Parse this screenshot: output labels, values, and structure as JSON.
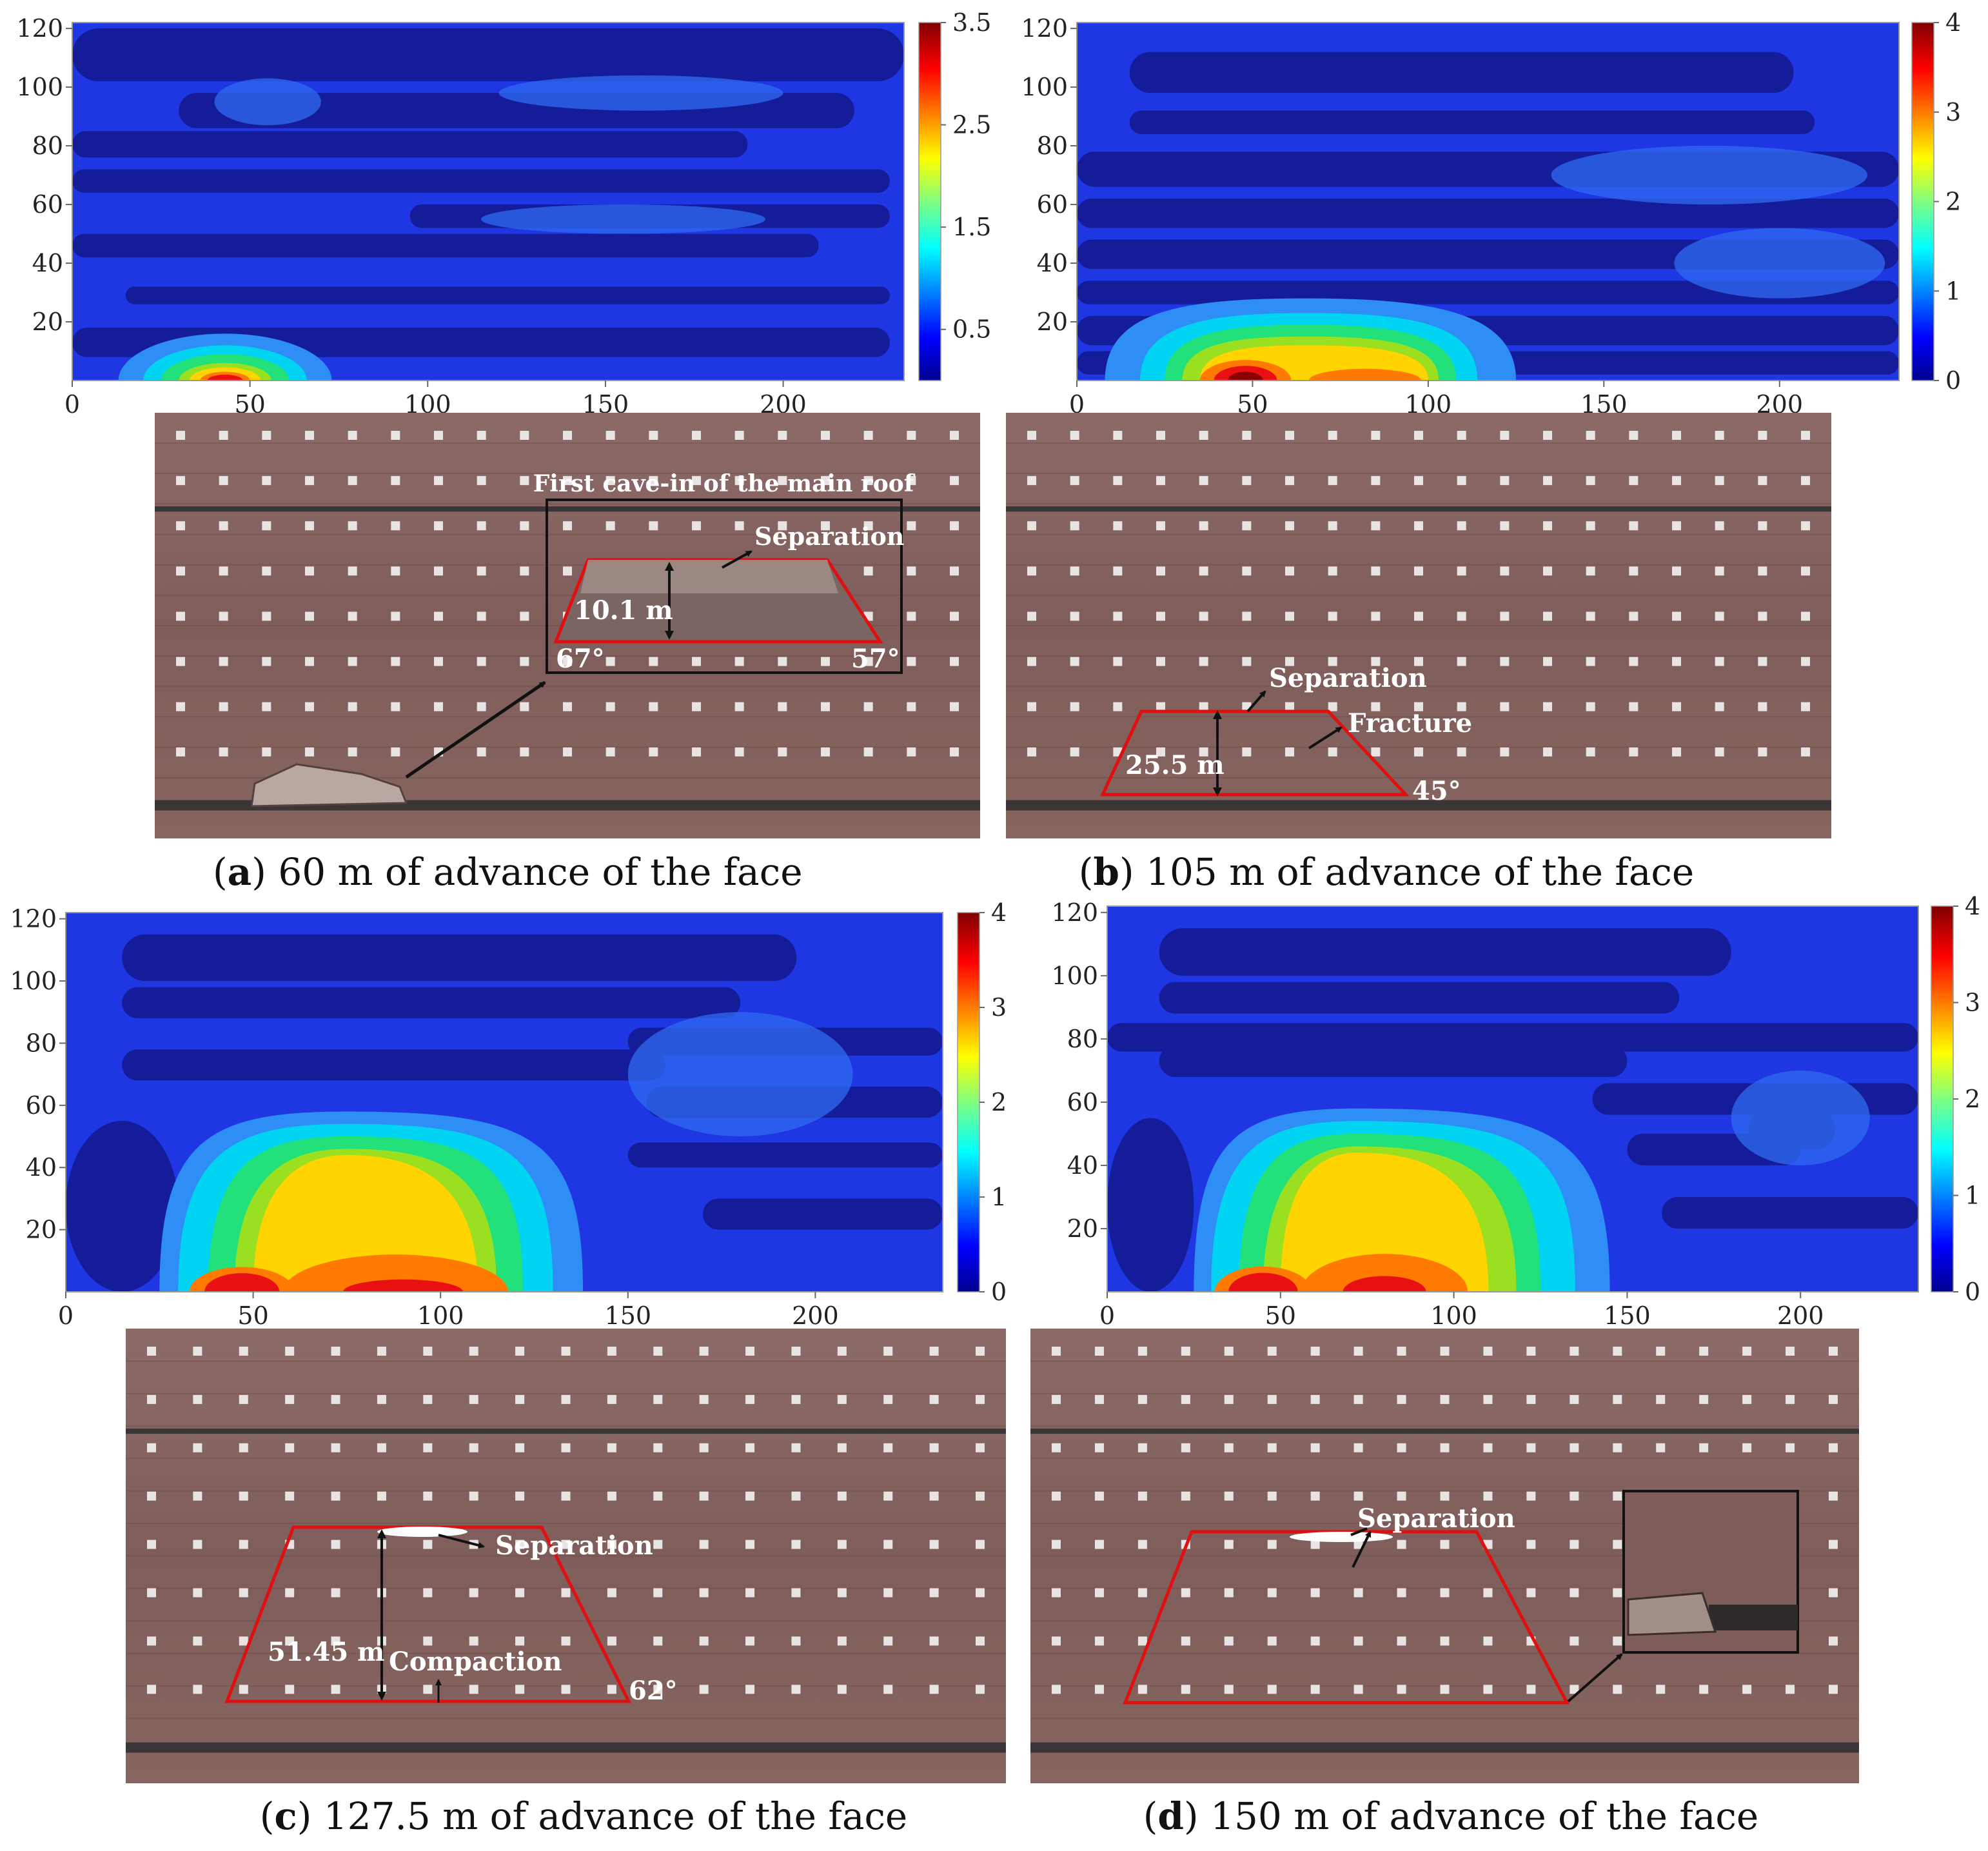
{
  "figures": [
    {
      "caption": {
        "letter": "a",
        "text": "60 m of advance of the face"
      }
    },
    {
      "caption": {
        "letter": "b",
        "text": "105 m of advance of the face"
      }
    },
    {
      "caption": {
        "letter": "c",
        "text": "127.5 m of advance of the face"
      }
    },
    {
      "caption": {
        "letter": "d",
        "text": "150 m of advance of the face"
      }
    }
  ],
  "chart_data": [
    {
      "type": "heatmap",
      "xlim": [
        0,
        234
      ],
      "ylim": [
        0,
        122
      ],
      "x_ticks": [
        "0",
        "50",
        "100",
        "150",
        "200"
      ],
      "y_ticks": [
        "120",
        "100",
        "80",
        "60",
        "40",
        "20"
      ],
      "colorbar": {
        "range": [
          0,
          3.5
        ],
        "ticks": [
          "3.5",
          "2.5",
          "1.5",
          "0.5"
        ]
      },
      "peaks": [
        {
          "x": 45,
          "y": 0,
          "value": 3.5
        }
      ],
      "photo_annotations": [
        "First cave-in of the main roof",
        "Separation",
        "10.1 m",
        "67°",
        "57°"
      ]
    },
    {
      "type": "heatmap",
      "xlim": [
        0,
        234
      ],
      "ylim": [
        0,
        122
      ],
      "x_ticks": [
        "0",
        "50",
        "100",
        "150",
        "200"
      ],
      "y_ticks": [
        "120",
        "100",
        "80",
        "60",
        "40",
        "20"
      ],
      "colorbar": {
        "range": [
          0,
          4
        ],
        "ticks": [
          "4",
          "3",
          "2",
          "1",
          "0"
        ]
      },
      "peaks": [
        {
          "x": 50,
          "y": 0,
          "value": 4
        },
        {
          "x": 80,
          "y": 0,
          "value": 3
        }
      ],
      "photo_annotations": [
        "Separation",
        "Fracture",
        "25.5 m",
        "45°"
      ]
    },
    {
      "type": "heatmap",
      "xlim": [
        0,
        234
      ],
      "ylim": [
        0,
        122
      ],
      "x_ticks": [
        "0",
        "50",
        "100",
        "150",
        "200"
      ],
      "y_ticks": [
        "120",
        "100",
        "80",
        "60",
        "40",
        "20"
      ],
      "colorbar": {
        "range": [
          0,
          4
        ],
        "ticks": [
          "4",
          "3",
          "2",
          "1",
          "0"
        ]
      },
      "peaks": [
        {
          "x": 48,
          "y": 0,
          "value": 4
        },
        {
          "x": 85,
          "y": 0,
          "value": 3.5
        }
      ],
      "photo_annotations": [
        "Separation",
        "51.45 m",
        "Compaction",
        "62°"
      ]
    },
    {
      "type": "heatmap",
      "xlim": [
        0,
        234
      ],
      "ylim": [
        0,
        122
      ],
      "x_ticks": [
        "0",
        "50",
        "100",
        "150",
        "200"
      ],
      "y_ticks": [
        "120",
        "100",
        "80",
        "60",
        "40",
        "20"
      ],
      "colorbar": {
        "range": [
          0,
          4
        ],
        "ticks": [
          "4",
          "3",
          "2",
          "1",
          "0"
        ]
      },
      "peaks": [
        {
          "x": 45,
          "y": 0,
          "value": 4
        },
        {
          "x": 78,
          "y": 0,
          "value": 3.5
        }
      ],
      "photo_annotations": [
        "Separation"
      ]
    }
  ]
}
